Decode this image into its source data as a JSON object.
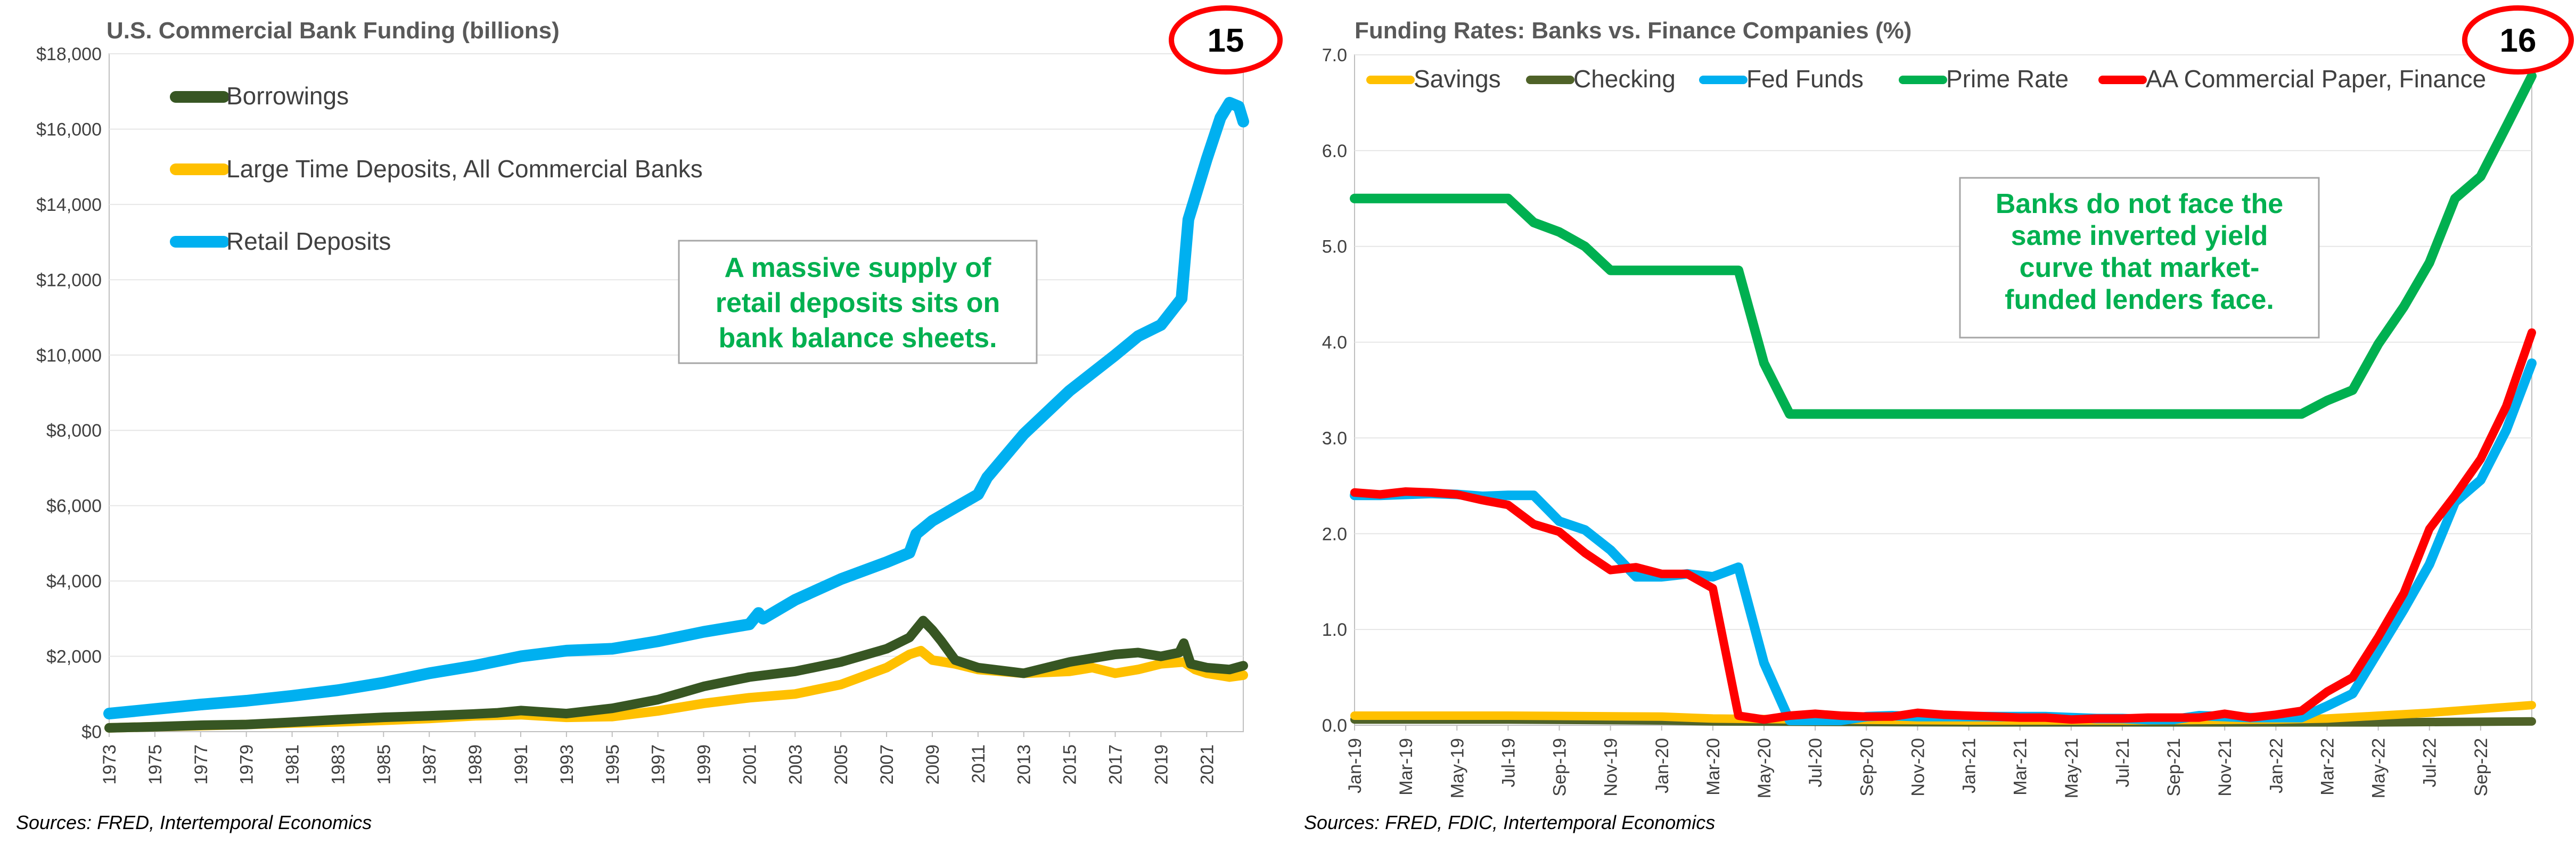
{
  "colors": {
    "borrowings": "#375623",
    "large_time": "#ffc000",
    "retail": "#00b0f0",
    "savings": "#ffc000",
    "checking": "#4f6228",
    "fed_funds": "#00b0f0",
    "prime": "#00b050",
    "cp": "#ff0000",
    "note_text": "#00b050",
    "badge": "#ff0000"
  },
  "charts": {
    "left": {
      "title": "U.S. Commercial Bank Funding (billions)",
      "badge": "15",
      "source": "Sources: FRED, Intertemporal Economics",
      "note": [
        "A massive supply of",
        "retail deposits sits on",
        "bank balance sheets."
      ],
      "y_tick_labels": [
        "$0",
        "$2,000",
        "$4,000",
        "$6,000",
        "$8,000",
        "$10,000",
        "$12,000",
        "$14,000",
        "$16,000",
        "$18,000"
      ],
      "x_tick_labels": [
        "1973",
        "1975",
        "1977",
        "1979",
        "1981",
        "1983",
        "1985",
        "1987",
        "1989",
        "1991",
        "1993",
        "1995",
        "1997",
        "1999",
        "2001",
        "2003",
        "2005",
        "2007",
        "2009",
        "2011",
        "2013",
        "2015",
        "2017",
        "2019",
        "2021"
      ]
    },
    "right": {
      "title": "Funding Rates: Banks vs. Finance Companies (%)",
      "badge": "16",
      "source": "Sources: FRED, FDIC, Intertemporal Economics",
      "note": [
        "Banks do not face the",
        "same inverted yield",
        "curve that market-",
        "funded lenders face."
      ],
      "y_tick_labels": [
        "0.0",
        "1.0",
        "2.0",
        "3.0",
        "4.0",
        "5.0",
        "6.0",
        "7.0"
      ],
      "x_tick_labels": [
        "Jan-19",
        "Mar-19",
        "May-19",
        "Jul-19",
        "Sep-19",
        "Nov-19",
        "Jan-20",
        "Mar-20",
        "May-20",
        "Jul-20",
        "Sep-20",
        "Nov-20",
        "Jan-21",
        "Mar-21",
        "May-21",
        "Jul-21",
        "Sep-21",
        "Nov-21",
        "Jan-22",
        "Mar-22",
        "May-22",
        "Jul-22",
        "Sep-22"
      ]
    }
  },
  "chart_data": [
    {
      "type": "line",
      "title": "U.S. Commercial Bank Funding (billions)",
      "ylim": [
        0,
        18000
      ],
      "xlim": [
        1973,
        2022.6
      ],
      "legend_position": "top-left",
      "series": [
        {
          "name": "Borrowings",
          "x": [
            1973,
            1975,
            1977,
            1979,
            1981,
            1983,
            1985,
            1987,
            1989,
            1990,
            1991,
            1993,
            1995,
            1997,
            1999,
            2001,
            2003,
            2005,
            2007,
            2008,
            2008.6,
            2009,
            2009.4,
            2010,
            2011,
            2013,
            2015,
            2017,
            2018,
            2019,
            2019.8,
            2020,
            2020.3,
            2021,
            2022,
            2022.6
          ],
          "y": [
            100,
            130,
            170,
            190,
            250,
            320,
            380,
            420,
            470,
            500,
            560,
            480,
            620,
            850,
            1200,
            1450,
            1600,
            1850,
            2200,
            2500,
            2950,
            2700,
            2400,
            1900,
            1700,
            1550,
            1850,
            2050,
            2100,
            2000,
            2100,
            2350,
            1800,
            1700,
            1650,
            1750
          ]
        },
        {
          "name": "Large Time Deposits, All Commercial Banks",
          "x": [
            1973,
            1975,
            1977,
            1979,
            1981,
            1983,
            1985,
            1987,
            1989,
            1991,
            1993,
            1995,
            1997,
            1999,
            2001,
            2003,
            2005,
            2007,
            2008,
            2008.5,
            2009,
            2010,
            2011,
            2013,
            2015,
            2016,
            2017,
            2018,
            2019,
            2020,
            2020.5,
            2021,
            2022,
            2022.6
          ],
          "y": [
            100,
            130,
            160,
            190,
            230,
            260,
            300,
            350,
            420,
            450,
            380,
            400,
            550,
            750,
            900,
            1000,
            1250,
            1700,
            2050,
            2150,
            1900,
            1800,
            1650,
            1550,
            1600,
            1700,
            1550,
            1650,
            1800,
            1850,
            1650,
            1550,
            1450,
            1500
          ]
        },
        {
          "name": "Retail Deposits",
          "x": [
            1973,
            1975,
            1977,
            1979,
            1981,
            1983,
            1985,
            1987,
            1989,
            1991,
            1993,
            1995,
            1997,
            1999,
            2001,
            2001.4,
            2001.6,
            2003,
            2005,
            2007,
            2008,
            2008.3,
            2009,
            2010,
            2011,
            2011.4,
            2013,
            2015,
            2017,
            2018,
            2019,
            2019.9,
            2020.2,
            2020.4,
            2021,
            2021.6,
            2022,
            2022.4,
            2022.6
          ],
          "y": [
            480,
            600,
            720,
            820,
            950,
            1100,
            1300,
            1550,
            1750,
            2000,
            2150,
            2200,
            2400,
            2650,
            2850,
            3150,
            3000,
            3500,
            4050,
            4500,
            4750,
            5250,
            5600,
            5950,
            6300,
            6750,
            7900,
            9050,
            10000,
            10500,
            10800,
            11500,
            13600,
            14000,
            15200,
            16300,
            16700,
            16600,
            16200
          ]
        }
      ]
    },
    {
      "type": "line",
      "title": "Funding Rates: Banks vs. Finance Companies (%)",
      "ylim": [
        0,
        7
      ],
      "x_unit": "months from Jan-19",
      "legend_position": "top",
      "categories": [
        "Jan-19",
        "Mar-19",
        "May-19",
        "Jul-19",
        "Sep-19",
        "Nov-19",
        "Jan-20",
        "Mar-20",
        "May-20",
        "Jul-20",
        "Sep-20",
        "Nov-20",
        "Jan-21",
        "Mar-21",
        "May-21",
        "Jul-21",
        "Sep-21",
        "Nov-21",
        "Jan-22",
        "Mar-22",
        "May-22",
        "Jul-22",
        "Sep-22"
      ],
      "series": [
        {
          "name": "Savings",
          "x": [
            0,
            6,
            12,
            14,
            18,
            24,
            30,
            36,
            38,
            40,
            42,
            44,
            46
          ],
          "y": [
            0.1,
            0.1,
            0.09,
            0.07,
            0.06,
            0.05,
            0.05,
            0.06,
            0.07,
            0.1,
            0.13,
            0.17,
            0.21
          ]
        },
        {
          "name": "Checking",
          "x": [
            0,
            6,
            12,
            14,
            24,
            36,
            40,
            46
          ],
          "y": [
            0.06,
            0.06,
            0.05,
            0.04,
            0.03,
            0.03,
            0.03,
            0.04
          ]
        },
        {
          "name": "Fed Funds",
          "x": [
            0,
            1,
            2,
            3,
            4,
            5,
            6,
            7,
            8,
            9,
            10,
            11,
            12,
            13,
            14,
            15,
            16,
            17,
            18,
            19,
            20,
            21,
            22,
            23,
            24,
            25,
            26,
            27,
            28,
            29,
            30,
            31,
            32,
            33,
            34,
            35,
            36,
            37,
            38,
            39,
            40,
            41,
            42,
            43,
            44,
            45,
            46
          ],
          "y": [
            2.4,
            2.4,
            2.41,
            2.42,
            2.41,
            2.39,
            2.4,
            2.4,
            2.13,
            2.04,
            1.83,
            1.55,
            1.55,
            1.58,
            1.55,
            1.65,
            0.65,
            0.05,
            0.05,
            0.05,
            0.09,
            0.1,
            0.09,
            0.09,
            0.09,
            0.09,
            0.09,
            0.09,
            0.08,
            0.07,
            0.07,
            0.06,
            0.06,
            0.1,
            0.09,
            0.08,
            0.08,
            0.08,
            0.2,
            0.33,
            0.77,
            1.21,
            1.68,
            2.33,
            2.56,
            3.08,
            3.78
          ]
        },
        {
          "name": "Prime Rate",
          "x": [
            0,
            6,
            7,
            8,
            9,
            10,
            11,
            12,
            13,
            14,
            15,
            16,
            17,
            18,
            36,
            37,
            38,
            39,
            40,
            41,
            42,
            43,
            44,
            45,
            46
          ],
          "y": [
            5.5,
            5.5,
            5.25,
            5.15,
            5.0,
            4.75,
            4.75,
            4.75,
            4.75,
            4.75,
            4.75,
            3.78,
            3.25,
            3.25,
            3.25,
            3.25,
            3.39,
            3.5,
            3.98,
            4.37,
            4.83,
            5.5,
            5.73,
            6.25,
            6.78
          ]
        },
        {
          "name": "AA Commercial Paper, Finance",
          "x": [
            0,
            1,
            2,
            3,
            4,
            5,
            6,
            7,
            8,
            9,
            10,
            11,
            12,
            13,
            14,
            15,
            16,
            17,
            18,
            19,
            20,
            21,
            22,
            23,
            24,
            25,
            26,
            27,
            28,
            29,
            30,
            31,
            32,
            33,
            34,
            35,
            36,
            37,
            38,
            39,
            40,
            41,
            42,
            43,
            44,
            45,
            46
          ],
          "y": [
            2.43,
            2.41,
            2.44,
            2.43,
            2.41,
            2.35,
            2.3,
            2.1,
            2.02,
            1.8,
            1.62,
            1.65,
            1.58,
            1.58,
            1.43,
            0.1,
            0.06,
            0.1,
            0.12,
            0.1,
            0.09,
            0.09,
            0.13,
            0.11,
            0.1,
            0.09,
            0.08,
            0.08,
            0.06,
            0.07,
            0.07,
            0.08,
            0.08,
            0.08,
            0.12,
            0.08,
            0.11,
            0.15,
            0.35,
            0.5,
            0.92,
            1.38,
            2.05,
            2.4,
            2.78,
            3.33,
            4.1
          ]
        }
      ]
    }
  ]
}
